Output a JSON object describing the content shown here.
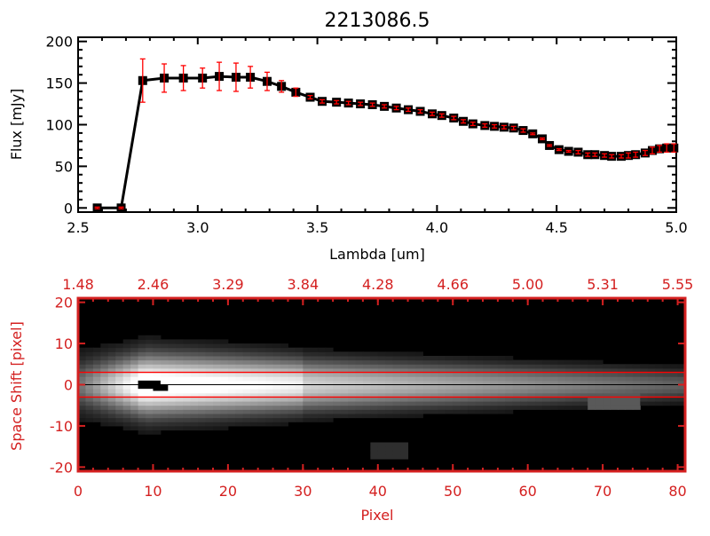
{
  "colors": {
    "axis_top": "#000000",
    "axis_bottom": "#d42020",
    "error_bar": "#ff0000",
    "marker": "#000000",
    "aperture_line": "#ff0000"
  },
  "chart_data": [
    {
      "type": "line",
      "title": "2213086.5",
      "xlabel": "Lambda [um]",
      "ylabel": "Flux [mJy]",
      "xlim": [
        2.5,
        5.0
      ],
      "ylim": [
        -5,
        205
      ],
      "xticks": [
        "2.5",
        "3.0",
        "3.5",
        "4.0",
        "4.5",
        "5.0"
      ],
      "xtick_values": [
        2.5,
        3.0,
        3.5,
        4.0,
        4.5,
        5.0
      ],
      "yticks": [
        "0",
        "50",
        "100",
        "150",
        "200"
      ],
      "ytick_values": [
        0,
        50,
        100,
        150,
        200
      ],
      "marker": "square",
      "x": [
        2.58,
        2.68,
        2.77,
        2.86,
        2.94,
        3.02,
        3.09,
        3.16,
        3.22,
        3.29,
        3.35,
        3.41,
        3.47,
        3.52,
        3.58,
        3.63,
        3.68,
        3.73,
        3.78,
        3.83,
        3.88,
        3.93,
        3.98,
        4.02,
        4.07,
        4.11,
        4.15,
        4.2,
        4.24,
        4.28,
        4.32,
        4.36,
        4.4,
        4.44,
        4.47,
        4.51,
        4.55,
        4.59,
        4.63,
        4.66,
        4.7,
        4.73,
        4.77,
        4.8,
        4.83,
        4.87,
        4.9,
        4.93,
        4.96,
        4.99
      ],
      "y": [
        0,
        0,
        153,
        156,
        156,
        156,
        158,
        157,
        157,
        152,
        146,
        139,
        133,
        128,
        127,
        126,
        125,
        124,
        122,
        120,
        118,
        116,
        113,
        111,
        108,
        104,
        101,
        99,
        98,
        97,
        96,
        93,
        89,
        83,
        75,
        70,
        68,
        67,
        64,
        64,
        63,
        62,
        62,
        63,
        64,
        66,
        69,
        71,
        72,
        72
      ],
      "yerr": [
        1,
        1,
        26,
        17,
        15,
        12,
        17,
        17,
        13,
        11,
        7,
        5,
        2,
        2,
        2,
        2,
        2,
        2,
        2,
        2,
        2,
        2,
        2,
        2,
        2,
        2,
        2,
        2,
        2,
        2,
        2,
        2,
        1,
        1,
        1,
        1,
        1,
        2,
        2,
        2,
        2,
        2,
        2,
        3,
        3,
        3,
        4,
        4,
        5,
        5
      ]
    },
    {
      "type": "heatmap",
      "xlabel": "Pixel",
      "ylabel": "Space Shift [pixel]",
      "xlim": [
        0,
        81
      ],
      "ylim": [
        -21,
        21
      ],
      "xticks": [
        "0",
        "10",
        "20",
        "30",
        "40",
        "50",
        "60",
        "70",
        "80"
      ],
      "xtick_values": [
        0,
        10,
        20,
        30,
        40,
        50,
        60,
        70,
        80
      ],
      "yticks": [
        "-20",
        "-10",
        "0",
        "10",
        "20"
      ],
      "ytick_values": [
        -20,
        -10,
        0,
        10,
        20
      ],
      "top_axis_ticks": [
        "1.48",
        "2.46",
        "3.29",
        "3.84",
        "4.28",
        "4.66",
        "5.00",
        "5.31",
        "5.55"
      ],
      "colormap": "grayscale",
      "aperture_lines": [
        3,
        -3
      ],
      "center_line": 0
    }
  ]
}
